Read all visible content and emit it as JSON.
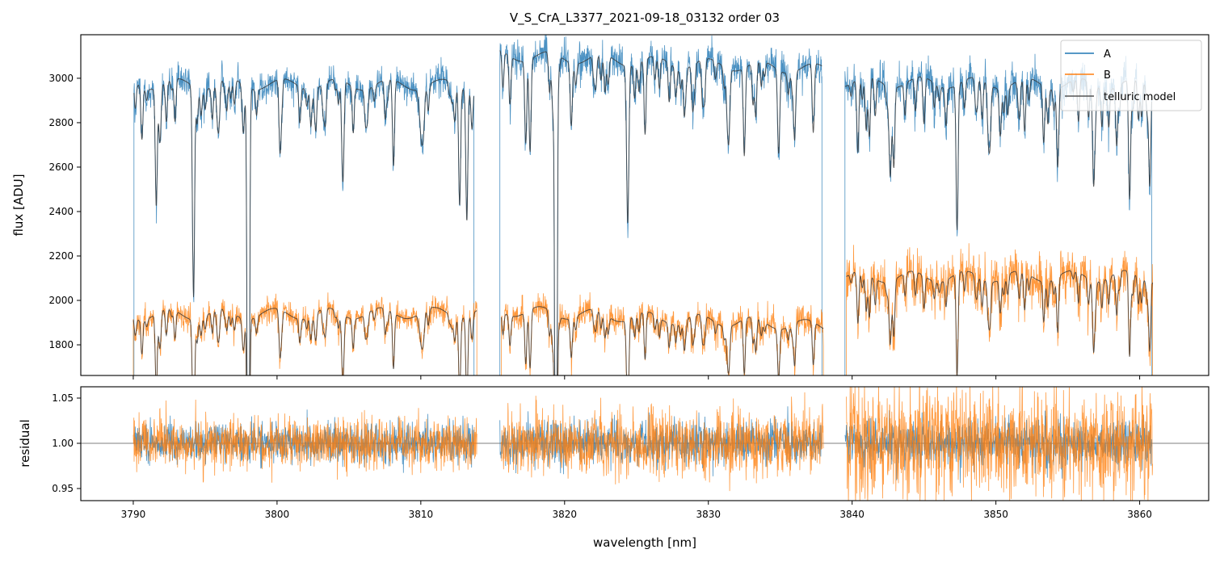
{
  "chart_data": {
    "type": "line",
    "title": "V_S_CrA_L3377_2021-09-18_03132  order 03",
    "panels": [
      {
        "name": "flux",
        "ylabel": "flux [ADU]",
        "ylim": [
          1662,
          3196
        ],
        "yticks": [
          1800,
          2000,
          2200,
          2400,
          2600,
          2800,
          3000
        ],
        "ytick_labels": [
          "1800",
          "2000",
          "2200",
          "2400",
          "2600",
          "2800",
          "3000"
        ]
      },
      {
        "name": "residual",
        "ylabel": "residual",
        "ylim": [
          0.9366,
          1.0625
        ],
        "yticks": [
          0.95,
          1.0,
          1.05
        ],
        "ytick_labels": [
          "0.95",
          "1.00",
          "1.05"
        ],
        "reference_line": 1.0
      }
    ],
    "xlabel": "wavelength [nm]",
    "xlim": [
      3786.35,
      3864.8
    ],
    "xticks": [
      3790,
      3800,
      3810,
      3820,
      3830,
      3840,
      3850,
      3860
    ],
    "xtick_labels": [
      "3790",
      "3800",
      "3810",
      "3820",
      "3830",
      "3840",
      "3850",
      "3860"
    ],
    "legend": {
      "placement": "top-right",
      "entries": [
        "A",
        "B",
        "telluric model"
      ]
    },
    "series": [
      {
        "name": "A",
        "color": "#1f77b4",
        "segments": [
          {
            "start": 3790.05,
            "end": 3813.7,
            "continuum": [
              2975,
              2970
            ],
            "noise": 35,
            "res_noise": 0.011
          },
          {
            "start": 3815.5,
            "end": 3837.9,
            "continuum": [
              3105,
              3040
            ],
            "noise": 40,
            "res_noise": 0.012
          },
          {
            "start": 3839.5,
            "end": 3860.85,
            "continuum": [
              2985,
              2970
            ],
            "noise": 45,
            "res_noise": 0.013
          }
        ]
      },
      {
        "name": "B",
        "color": "#ff7f0e",
        "segments": [
          {
            "start": 3790.0,
            "end": 3813.9,
            "continuum": [
              1935,
              1945
            ],
            "noise": 28,
            "res_noise": 0.014
          },
          {
            "start": 3815.6,
            "end": 3838.0,
            "continuum": [
              1955,
              1885
            ],
            "noise": 35,
            "res_noise": 0.018
          },
          {
            "start": 3839.6,
            "end": 3860.9,
            "continuum": [
              2105,
              2110
            ],
            "noise": 55,
            "res_noise": 0.03
          }
        ]
      },
      {
        "name": "telluric model",
        "color": "#333333"
      }
    ],
    "telluric_lines": [
      {
        "wl": 3790.6,
        "depth": 0.08
      },
      {
        "wl": 3791.6,
        "depth": 0.18
      },
      {
        "wl": 3792.3,
        "depth": 0.06
      },
      {
        "wl": 3794.2,
        "depth": 0.26
      },
      {
        "wl": 3795.5,
        "depth": 0.05
      },
      {
        "wl": 3798.0,
        "depth": 1.0
      },
      {
        "wl": 3800.2,
        "depth": 0.1
      },
      {
        "wl": 3802.7,
        "depth": 0.06
      },
      {
        "wl": 3804.6,
        "depth": 0.12
      },
      {
        "wl": 3805.3,
        "depth": 0.07
      },
      {
        "wl": 3808.1,
        "depth": 0.13
      },
      {
        "wl": 3810.1,
        "depth": 0.06
      },
      {
        "wl": 3812.7,
        "depth": 0.18
      },
      {
        "wl": 3813.2,
        "depth": 0.2
      },
      {
        "wl": 3816.2,
        "depth": 0.07
      },
      {
        "wl": 3817.3,
        "depth": 0.12
      },
      {
        "wl": 3817.6,
        "depth": 0.1
      },
      {
        "wl": 3819.4,
        "depth": 1.0
      },
      {
        "wl": 3824.4,
        "depth": 0.18
      },
      {
        "wl": 3825.6,
        "depth": 0.11
      },
      {
        "wl": 3828.9,
        "depth": 0.06
      },
      {
        "wl": 3832.5,
        "depth": 0.13
      },
      {
        "wl": 3833.3,
        "depth": 0.08
      },
      {
        "wl": 3834.9,
        "depth": 0.1
      },
      {
        "wl": 3836.0,
        "depth": 0.1
      },
      {
        "wl": 3837.3,
        "depth": 0.08
      },
      {
        "wl": 3840.4,
        "depth": 0.11
      },
      {
        "wl": 3841.2,
        "depth": 0.09
      },
      {
        "wl": 3842.9,
        "depth": 0.12
      },
      {
        "wl": 3845.0,
        "depth": 0.07
      },
      {
        "wl": 3847.3,
        "depth": 0.22
      },
      {
        "wl": 3849.6,
        "depth": 0.07
      },
      {
        "wl": 3852.0,
        "depth": 0.08
      },
      {
        "wl": 3854.3,
        "depth": 0.12
      },
      {
        "wl": 3856.8,
        "depth": 0.13
      },
      {
        "wl": 3858.4,
        "depth": 0.09
      },
      {
        "wl": 3859.3,
        "depth": 0.18
      },
      {
        "wl": 3860.7,
        "depth": 0.15
      }
    ],
    "line_width_nm": 0.07,
    "minor_lines_per_segment": 45,
    "random_seed": 42
  }
}
